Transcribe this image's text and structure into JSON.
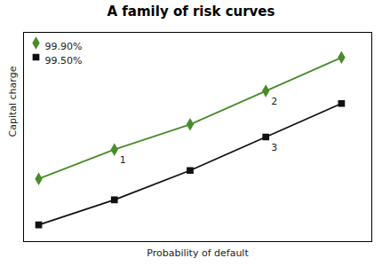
{
  "chart_data": {
    "type": "line",
    "title": "A family of risk curves",
    "xlabel": "Probability of default",
    "ylabel": "Capital charge",
    "x": [
      0,
      1,
      2,
      3,
      4
    ],
    "series": [
      {
        "name": "99.90%",
        "color": "#4a8c2a",
        "marker": "diamond",
        "values": [
          0.3,
          0.44,
          0.56,
          0.72,
          0.88
        ]
      },
      {
        "name": "99.50%",
        "color": "#111111",
        "marker": "square",
        "values": [
          0.08,
          0.2,
          0.34,
          0.5,
          0.66
        ]
      }
    ],
    "xlim": [
      -0.2,
      4.4
    ],
    "ylim": [
      0.0,
      1.0
    ],
    "tick_labels": false,
    "grid": false,
    "legend": "upper left",
    "annotations": [
      {
        "text": "1",
        "x": 1,
        "y": 0.44
      },
      {
        "text": "2",
        "x": 3,
        "y": 0.72
      },
      {
        "text": "3",
        "x": 3,
        "y": 0.5
      }
    ]
  }
}
